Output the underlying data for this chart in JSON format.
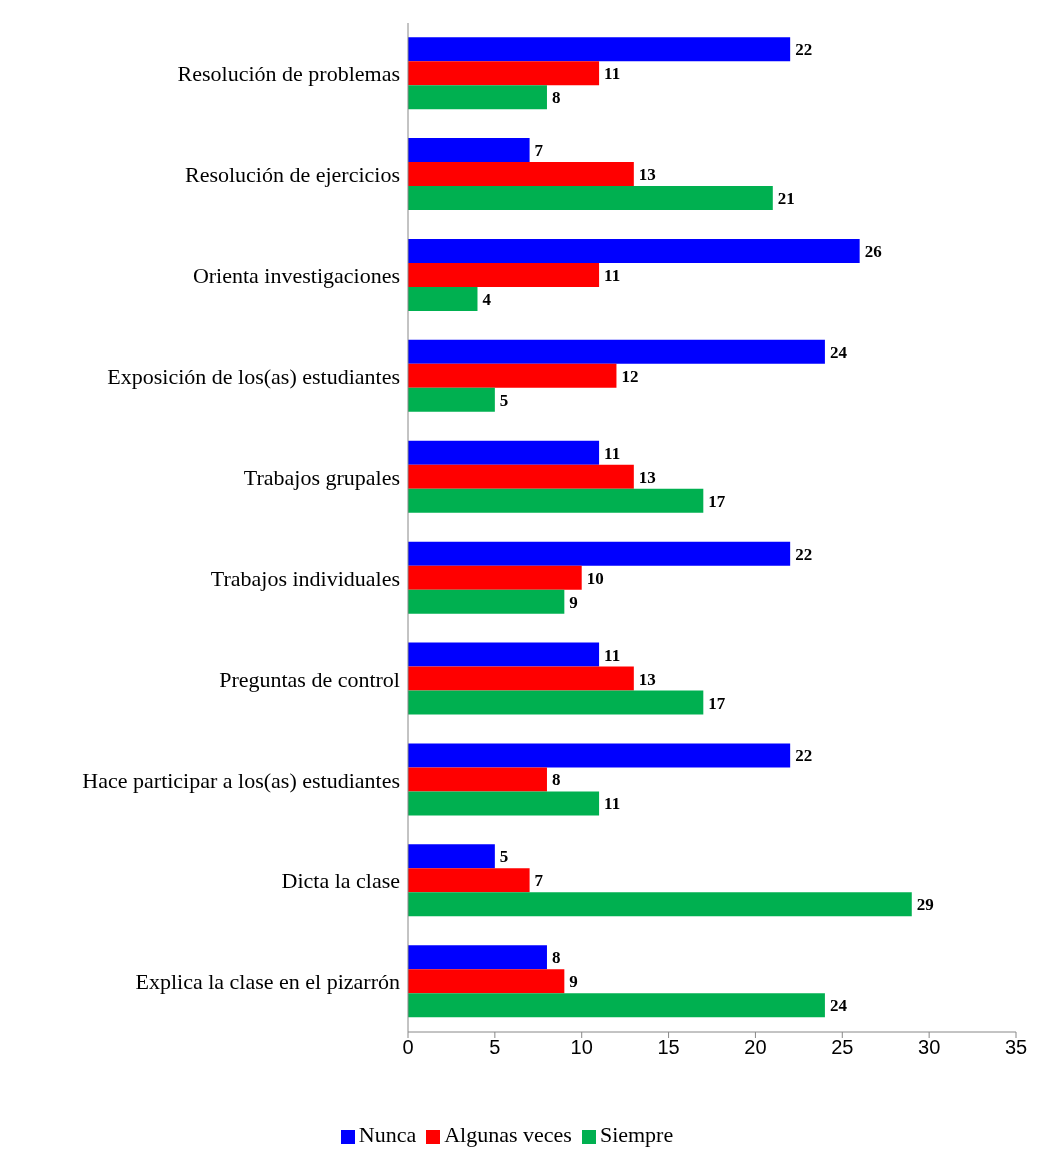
{
  "chart_data": {
    "type": "bar",
    "orientation": "horizontal",
    "categories": [
      "Resolución de problemas",
      "Resolución de ejercicios",
      "Orienta investigaciones",
      "Exposición de los(as) estudiantes",
      "Trabajos grupales",
      "Trabajos individuales",
      "Preguntas de control",
      "Hace participar a los(as) estudiantes",
      "Dicta la clase",
      "Explica la clase en el pizarrón"
    ],
    "series": [
      {
        "name": "Nunca",
        "color": "#0000ff",
        "values": [
          22,
          7,
          26,
          24,
          11,
          22,
          11,
          22,
          5,
          8
        ]
      },
      {
        "name": "Algunas veces",
        "color": "#ff0000",
        "values": [
          11,
          13,
          11,
          12,
          13,
          10,
          13,
          8,
          7,
          9
        ]
      },
      {
        "name": "Siempre",
        "color": "#00b050",
        "values": [
          8,
          21,
          4,
          5,
          17,
          9,
          17,
          11,
          29,
          24
        ]
      }
    ],
    "xlim": [
      0,
      35
    ],
    "xticks": [
      0,
      5,
      10,
      15,
      20,
      25,
      30,
      35
    ],
    "legend": "bottom",
    "data_labels": true
  }
}
